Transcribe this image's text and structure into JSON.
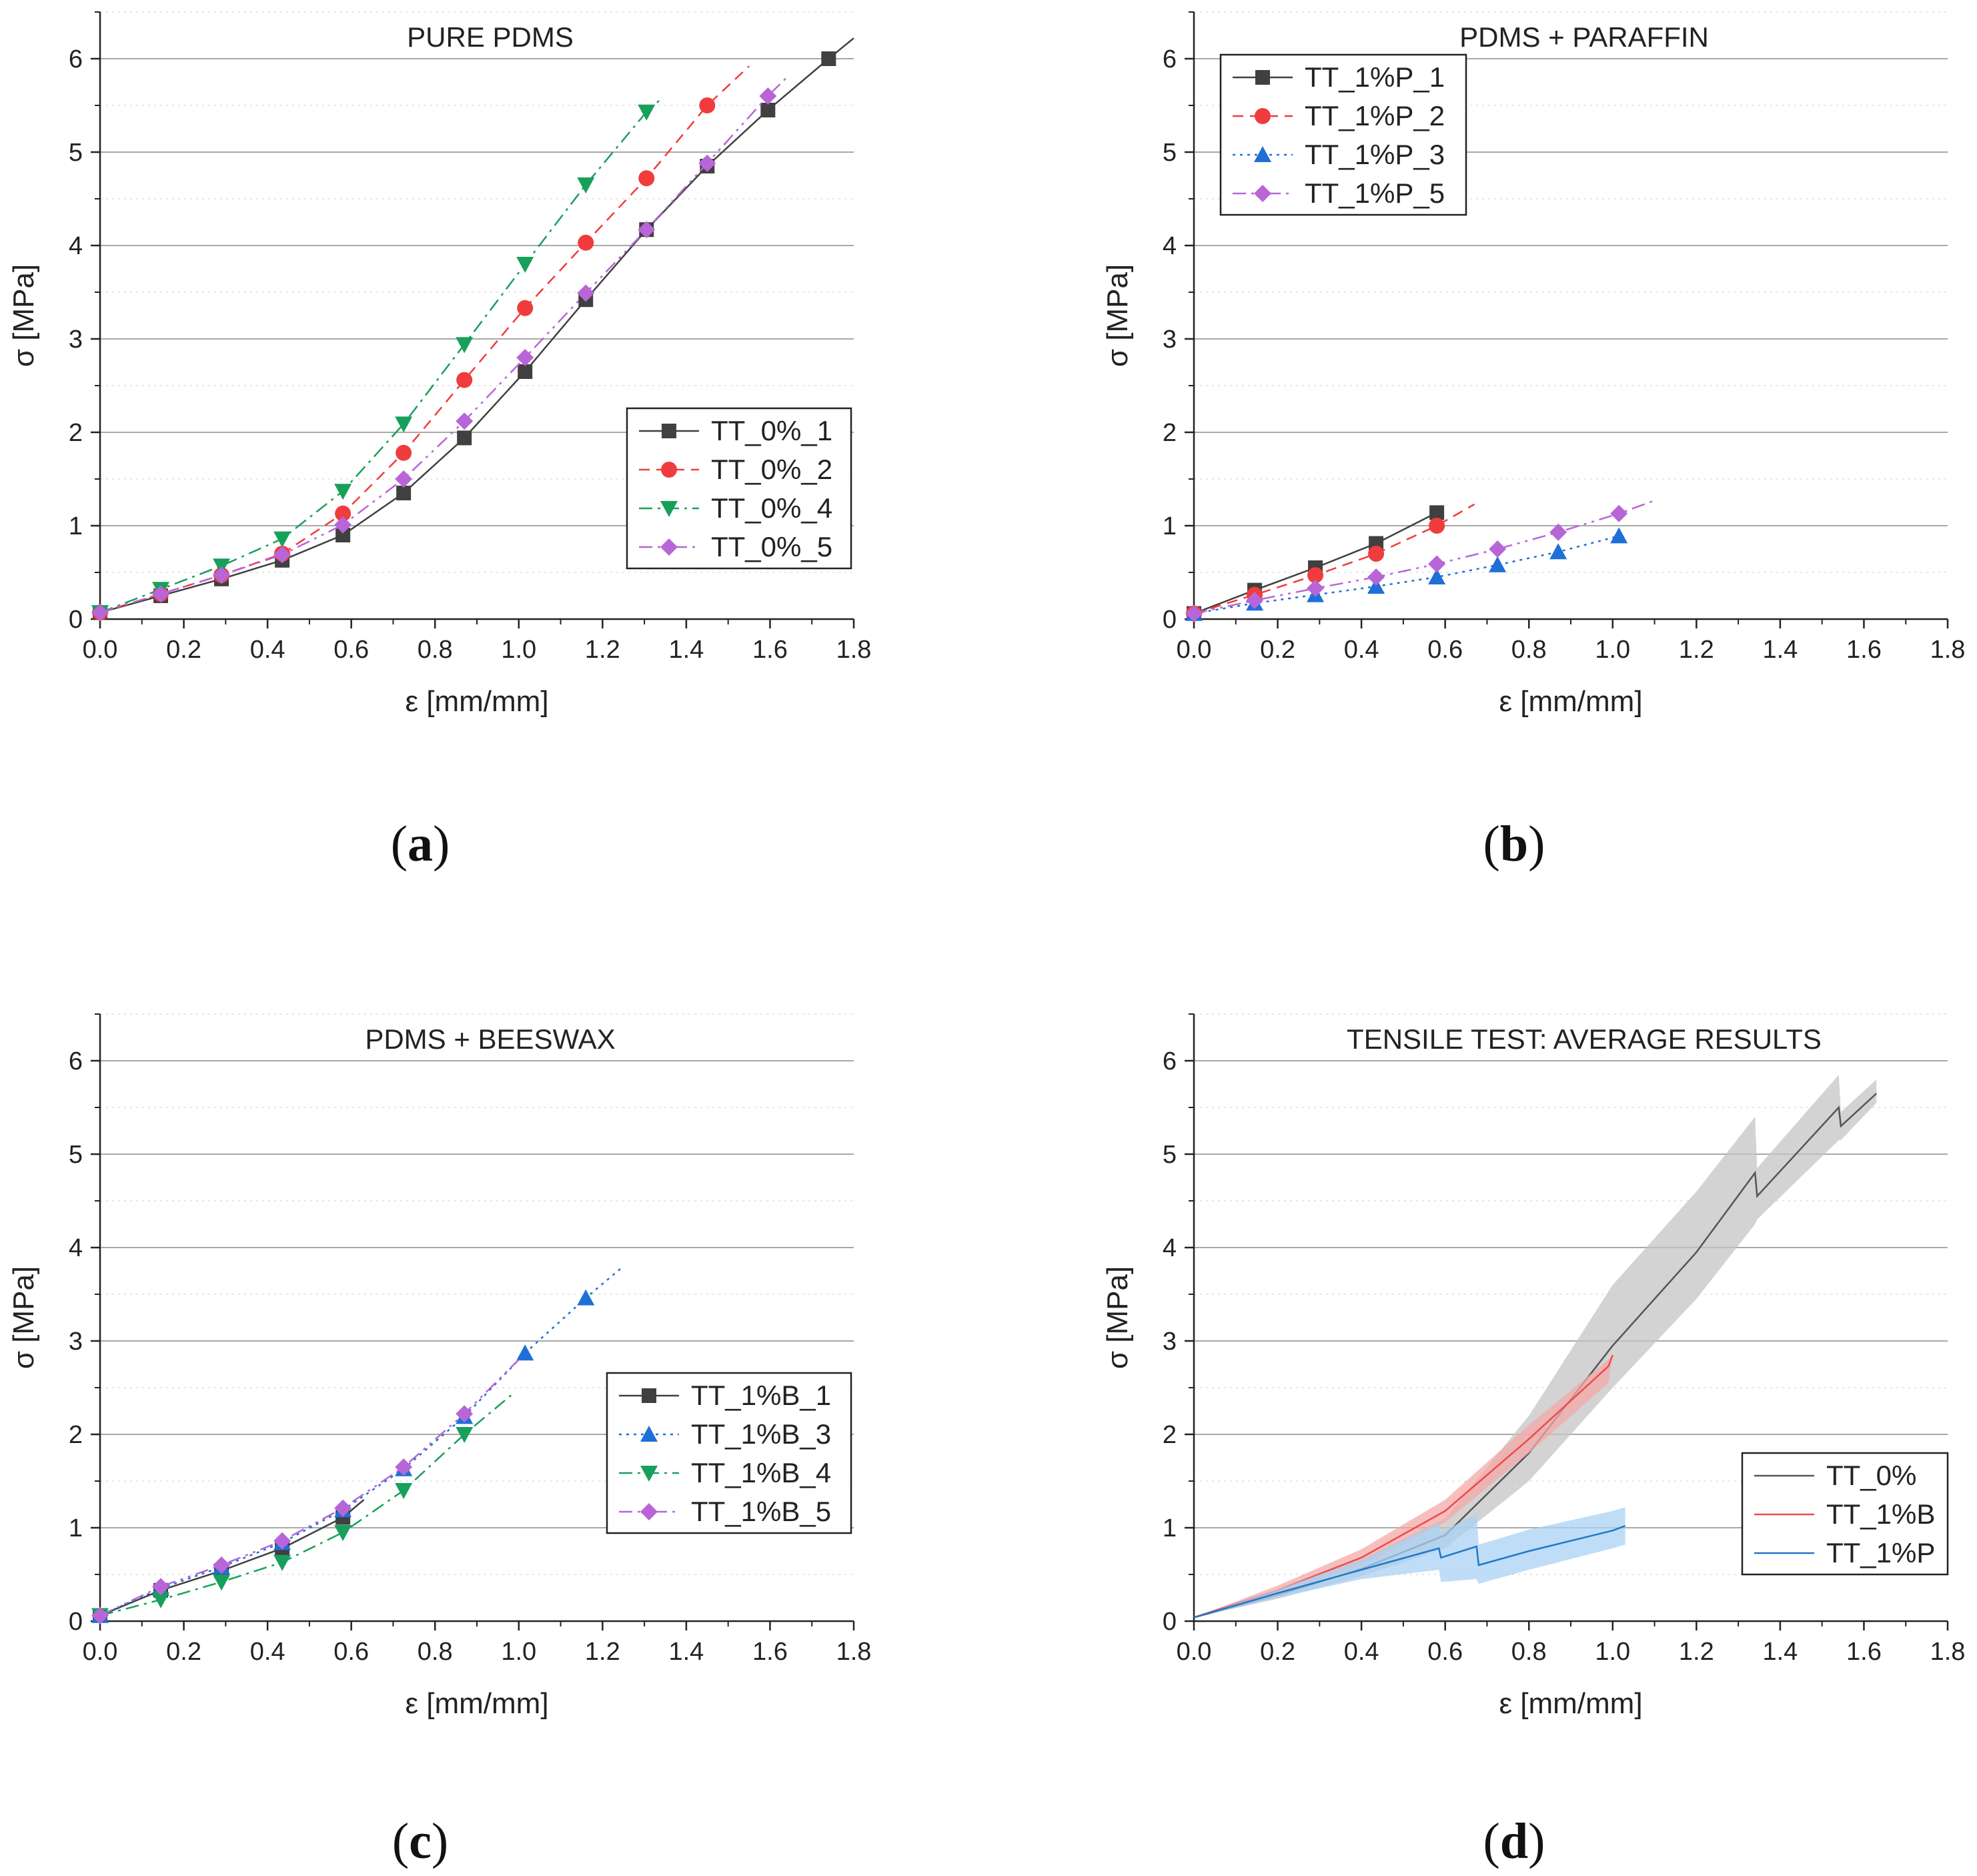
{
  "figure": {
    "panels": [
      {
        "id": "a",
        "label": "a"
      },
      {
        "id": "b",
        "label": "b"
      },
      {
        "id": "c",
        "label": "c"
      },
      {
        "id": "d",
        "label": "d"
      }
    ]
  },
  "chart_data": [
    {
      "type": "line",
      "panel": "a",
      "title": "PURE PDMS",
      "xlabel": "ε [mm/mm]",
      "ylabel": "σ [MPa]",
      "xlim": [
        0,
        1.8
      ],
      "ylim": [
        0,
        6.5
      ],
      "xticks": [
        "0.0",
        "0.2",
        "0.4",
        "0.6",
        "0.8",
        "1.0",
        "1.2",
        "1.4",
        "1.6",
        "1.8"
      ],
      "yticks": [
        "0",
        "1",
        "2",
        "3",
        "4",
        "5",
        "6"
      ],
      "grid": "horizontal",
      "legend_position": "right-middle",
      "series": [
        {
          "name": "TT_0%_1",
          "color": "#404040",
          "dash": "",
          "marker": "square",
          "x": [
            0.0,
            0.145,
            0.29,
            0.435,
            0.58,
            0.725,
            0.87,
            1.015,
            1.16,
            1.305,
            1.45,
            1.595,
            1.74,
            1.8
          ],
          "y": [
            0.07,
            0.25,
            0.43,
            0.63,
            0.9,
            1.35,
            1.94,
            2.65,
            3.42,
            4.17,
            4.85,
            5.45,
            6.0,
            6.22
          ],
          "marker_idx": [
            0,
            1,
            2,
            3,
            4,
            5,
            6,
            7,
            8,
            9,
            10,
            11,
            12
          ]
        },
        {
          "name": "TT_0%_2",
          "color": "#f03c3c",
          "dash": "16,10",
          "marker": "circle",
          "x": [
            0.0,
            0.145,
            0.29,
            0.435,
            0.58,
            0.725,
            0.87,
            1.015,
            1.16,
            1.305,
            1.45,
            1.55
          ],
          "y": [
            0.07,
            0.27,
            0.47,
            0.7,
            1.13,
            1.78,
            2.56,
            3.33,
            4.03,
            4.72,
            5.5,
            5.92
          ],
          "marker_idx": [
            0,
            1,
            2,
            3,
            4,
            5,
            6,
            7,
            8,
            9,
            10
          ]
        },
        {
          "name": "TT_0%_4",
          "color": "#17a05a",
          "dash": "20,8,4,8",
          "marker": "tri-down",
          "x": [
            0.0,
            0.145,
            0.29,
            0.435,
            0.58,
            0.725,
            0.87,
            1.015,
            1.16,
            1.305,
            1.335
          ],
          "y": [
            0.07,
            0.32,
            0.57,
            0.86,
            1.37,
            2.09,
            2.94,
            3.8,
            4.65,
            5.43,
            5.55
          ],
          "marker_idx": [
            0,
            1,
            2,
            3,
            4,
            5,
            6,
            7,
            8,
            9
          ]
        },
        {
          "name": "TT_0%_5",
          "color": "#b865d8",
          "dash": "20,8,4,8,4,8",
          "marker": "diamond",
          "x": [
            0.0,
            0.145,
            0.29,
            0.435,
            0.58,
            0.725,
            0.87,
            1.015,
            1.16,
            1.305,
            1.45,
            1.595,
            1.64
          ],
          "y": [
            0.07,
            0.27,
            0.47,
            0.69,
            1.01,
            1.5,
            2.12,
            2.8,
            3.49,
            4.17,
            4.88,
            5.6,
            5.8
          ],
          "marker_idx": [
            0,
            1,
            2,
            3,
            4,
            5,
            6,
            7,
            8,
            9,
            10,
            11
          ]
        }
      ]
    },
    {
      "type": "line",
      "panel": "b",
      "title": "PDMS + PARAFFIN",
      "xlabel": "ε [mm/mm]",
      "ylabel": "σ [MPa]",
      "xlim": [
        0,
        1.8
      ],
      "ylim": [
        0,
        6.5
      ],
      "xticks": [
        "0.0",
        "0.2",
        "0.4",
        "0.6",
        "0.8",
        "1.0",
        "1.2",
        "1.4",
        "1.6",
        "1.8"
      ],
      "yticks": [
        "0",
        "1",
        "2",
        "3",
        "4",
        "5",
        "6"
      ],
      "grid": "horizontal",
      "legend_position": "top-left",
      "series": [
        {
          "name": "TT_1%P_1",
          "color": "#404040",
          "dash": "",
          "marker": "square",
          "x": [
            0.0,
            0.145,
            0.29,
            0.435,
            0.58
          ],
          "y": [
            0.06,
            0.31,
            0.55,
            0.81,
            1.14
          ],
          "marker_idx": [
            0,
            1,
            2,
            3,
            4
          ]
        },
        {
          "name": "TT_1%P_2",
          "color": "#f03c3c",
          "dash": "16,10",
          "marker": "circle",
          "x": [
            0.0,
            0.145,
            0.29,
            0.435,
            0.58,
            0.67
          ],
          "y": [
            0.06,
            0.26,
            0.47,
            0.7,
            1.0,
            1.23
          ],
          "marker_idx": [
            0,
            1,
            2,
            3,
            4
          ]
        },
        {
          "name": "TT_1%P_3",
          "color": "#1f6fd8",
          "dash": "4,7",
          "marker": "tri-up",
          "x": [
            0.0,
            0.145,
            0.29,
            0.435,
            0.58,
            0.725,
            0.87,
            1.015
          ],
          "y": [
            0.06,
            0.17,
            0.26,
            0.35,
            0.45,
            0.58,
            0.72,
            0.89
          ],
          "marker_idx": [
            0,
            1,
            2,
            3,
            4,
            5,
            6,
            7
          ]
        },
        {
          "name": "TT_1%P_5",
          "color": "#b865d8",
          "dash": "20,8,4,8,4,8",
          "marker": "diamond",
          "x": [
            0.0,
            0.145,
            0.29,
            0.435,
            0.58,
            0.725,
            0.87,
            1.015,
            1.1
          ],
          "y": [
            0.06,
            0.2,
            0.33,
            0.45,
            0.59,
            0.75,
            0.93,
            1.13,
            1.27
          ],
          "marker_idx": [
            0,
            1,
            2,
            3,
            4,
            5,
            6,
            7
          ]
        }
      ]
    },
    {
      "type": "line",
      "panel": "c",
      "title": "PDMS + BEESWAX",
      "xlabel": "ε [mm/mm]",
      "ylabel": "σ [MPa]",
      "xlim": [
        0,
        1.8
      ],
      "ylim": [
        0,
        6.5
      ],
      "xticks": [
        "0.0",
        "0.2",
        "0.4",
        "0.6",
        "0.8",
        "1.0",
        "1.2",
        "1.4",
        "1.6",
        "1.8"
      ],
      "yticks": [
        "0",
        "1",
        "2",
        "3",
        "4",
        "5",
        "6"
      ],
      "grid": "horizontal",
      "legend_position": "right-middle",
      "series": [
        {
          "name": "TT_1%B_1",
          "color": "#404040",
          "dash": "",
          "marker": "square",
          "x": [
            0.0,
            0.145,
            0.29,
            0.435,
            0.58,
            0.63
          ],
          "y": [
            0.06,
            0.33,
            0.54,
            0.78,
            1.11,
            1.3
          ],
          "marker_idx": [
            0,
            1,
            2,
            3,
            4
          ]
        },
        {
          "name": "TT_1%B_3",
          "color": "#1f6fd8",
          "dash": "4,7",
          "marker": "tri-up",
          "x": [
            0.0,
            0.145,
            0.29,
            0.435,
            0.58,
            0.725,
            0.87,
            1.015,
            1.16,
            1.25
          ],
          "y": [
            0.06,
            0.35,
            0.58,
            0.84,
            1.19,
            1.63,
            2.19,
            2.87,
            3.46,
            3.8
          ],
          "marker_idx": [
            0,
            1,
            2,
            3,
            4,
            5,
            6,
            7,
            8
          ]
        },
        {
          "name": "TT_1%B_4",
          "color": "#17a05a",
          "dash": "20,8,4,8",
          "marker": "tri-down",
          "x": [
            0.0,
            0.145,
            0.29,
            0.435,
            0.58,
            0.725,
            0.87,
            0.99
          ],
          "y": [
            0.06,
            0.23,
            0.42,
            0.63,
            0.95,
            1.4,
            2.0,
            2.45
          ],
          "marker_idx": [
            0,
            1,
            2,
            3,
            4,
            5,
            6
          ]
        },
        {
          "name": "TT_1%B_5",
          "color": "#b865d8",
          "dash": "20,8,4,8,4,8",
          "marker": "diamond",
          "x": [
            0.0,
            0.145,
            0.29,
            0.435,
            0.58,
            0.725,
            0.87,
            1.0
          ],
          "y": [
            0.06,
            0.37,
            0.6,
            0.86,
            1.21,
            1.65,
            2.22,
            2.8
          ],
          "marker_idx": [
            0,
            1,
            2,
            3,
            4,
            5,
            6
          ]
        }
      ]
    },
    {
      "type": "area",
      "panel": "d",
      "title": "TENSILE TEST: AVERAGE RESULTS",
      "xlabel": "ε [mm/mm]",
      "ylabel": "σ [MPa]",
      "xlim": [
        0,
        1.8
      ],
      "ylim": [
        0,
        6.5
      ],
      "xticks": [
        "0.0",
        "0.2",
        "0.4",
        "0.6",
        "0.8",
        "1.0",
        "1.2",
        "1.4",
        "1.6",
        "1.8"
      ],
      "yticks": [
        "0",
        "1",
        "2",
        "3",
        "4",
        "5",
        "6"
      ],
      "grid": "horizontal",
      "legend_position": "bottom-right",
      "series": [
        {
          "name": "TT_0%",
          "color": "#555555",
          "band_color": "#c4c4c4",
          "x": [
            0.0,
            0.2,
            0.4,
            0.6,
            0.8,
            1.0,
            1.2,
            1.34,
            1.345,
            1.54,
            1.545,
            1.63
          ],
          "y": [
            0.04,
            0.28,
            0.56,
            0.92,
            1.8,
            2.95,
            3.95,
            4.8,
            4.55,
            5.5,
            5.3,
            5.65
          ],
          "upper": [
            0.04,
            0.32,
            0.66,
            1.1,
            2.2,
            3.6,
            4.6,
            5.4,
            4.85,
            5.85,
            5.45,
            5.8
          ],
          "lower": [
            0.04,
            0.24,
            0.48,
            0.78,
            1.5,
            2.5,
            3.45,
            4.25,
            4.3,
            5.15,
            5.15,
            5.55
          ]
        },
        {
          "name": "TT_1%B",
          "color": "#f04848",
          "band_color": "#f4a8a8",
          "x": [
            0.0,
            0.2,
            0.4,
            0.6,
            0.8,
            0.99,
            1.0
          ],
          "y": [
            0.04,
            0.33,
            0.68,
            1.18,
            1.95,
            2.73,
            2.85
          ],
          "upper": [
            0.04,
            0.38,
            0.77,
            1.3,
            2.1,
            2.8,
            2.85
          ],
          "lower": [
            0.04,
            0.28,
            0.6,
            1.06,
            1.8,
            2.55,
            2.85
          ]
        },
        {
          "name": "TT_1%P",
          "color": "#1f78c8",
          "band_color": "#a9d2f3",
          "x": [
            0.0,
            0.2,
            0.4,
            0.585,
            0.59,
            0.675,
            0.68,
            0.8,
            1.0,
            1.03
          ],
          "y": [
            0.04,
            0.3,
            0.55,
            0.78,
            0.68,
            0.8,
            0.6,
            0.75,
            0.97,
            1.02
          ],
          "upper": [
            0.04,
            0.34,
            0.66,
            1.05,
            0.95,
            1.15,
            0.82,
            0.98,
            1.18,
            1.22
          ],
          "lower": [
            0.04,
            0.25,
            0.45,
            0.55,
            0.42,
            0.45,
            0.4,
            0.55,
            0.78,
            0.82
          ]
        }
      ]
    }
  ]
}
